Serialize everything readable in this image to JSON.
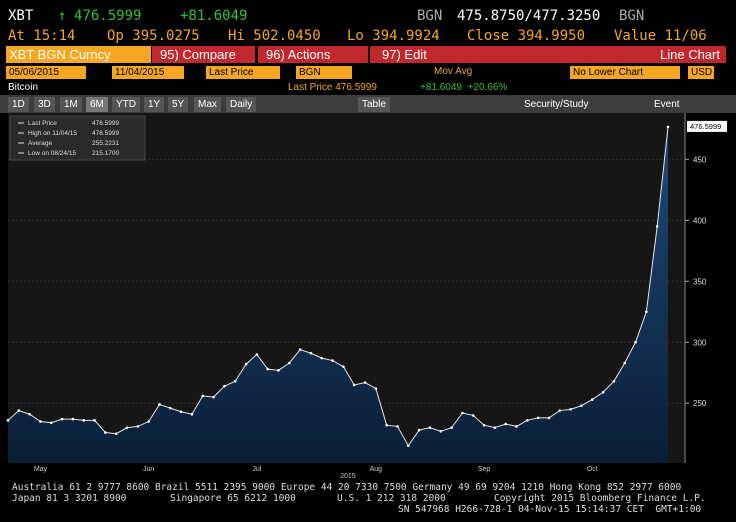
{
  "header": {
    "ticker": "XBT",
    "last": "476.5999",
    "change": "+81.6049",
    "source": "BGN",
    "bid_ask": "475.8750/477.3250",
    "source2": "BGN",
    "time": "At 15:14",
    "open": "Op 395.0275",
    "high": "Hi 502.0450",
    "low": "Lo 394.9924",
    "close": "Close 394.9950",
    "value_date": "Value 11/06"
  },
  "menu": {
    "security": "XBT BGN Curncy",
    "compare": "95) Compare",
    "actions": "96) Actions",
    "edit": "97) Edit",
    "chart_type": "Line Chart"
  },
  "settings": {
    "start": "05/06/2015",
    "end": "11/04/2015",
    "field": "Last Price",
    "source": "BGN",
    "study": "Mov Avg",
    "lower": "No Lower Chart",
    "currency": "USD"
  },
  "subheader": {
    "name": "Bitcoin",
    "last": "Last Price 476.5999",
    "change": "+81.6049  +20.66%"
  },
  "toolbar": {
    "periods": [
      "1D",
      "3D",
      "1M",
      "6M",
      "YTD",
      "1Y",
      "5Y",
      "Max"
    ],
    "frequency": "Daily",
    "table": "Table",
    "study": "Security/Study",
    "event": "Event"
  },
  "chart_data": {
    "type": "area",
    "categories": [
      null,
      null,
      null,
      "May",
      null,
      null,
      null,
      null,
      null,
      null,
      null,
      null,
      null,
      "Jun",
      null,
      null,
      null,
      null,
      null,
      null,
      null,
      null,
      null,
      "Jul",
      null,
      null,
      null,
      null,
      null,
      null,
      null,
      null,
      null,
      null,
      "Aug",
      null,
      null,
      null,
      null,
      null,
      null,
      null,
      null,
      null,
      "Sep",
      null,
      null,
      null,
      null,
      null,
      null,
      null,
      null,
      null,
      "Oct",
      null,
      null,
      null,
      null,
      null,
      null,
      null
    ],
    "x_year_label": "2015",
    "series": [
      {
        "name": "Last Price",
        "color": "#e6e6e6",
        "values": [
          236,
          244,
          241,
          235,
          234,
          237,
          237,
          236,
          236,
          226,
          225,
          230,
          231,
          235,
          249,
          246,
          243,
          241,
          256,
          255,
          264,
          268,
          282,
          290,
          278,
          277,
          283,
          294,
          291,
          287,
          285,
          280,
          265,
          267,
          262,
          232,
          231,
          215.17,
          228,
          230,
          227,
          230,
          242,
          240,
          232,
          230,
          233,
          231,
          236,
          238,
          238,
          244,
          245,
          248,
          253,
          259,
          268,
          283,
          300,
          325,
          395,
          476.5999
        ]
      }
    ],
    "last_price_label": "476.5999",
    "legend": [
      {
        "label": "Last Price",
        "value": "476.5999"
      },
      {
        "label": "High on 11/04/15",
        "value": "476.5999"
      },
      {
        "label": "Average",
        "value": "255.2231"
      },
      {
        "label": "Low on 08/24/15",
        "value": "215.1700"
      }
    ],
    "ylim": [
      201,
      488
    ],
    "yticks": [
      250,
      300,
      350,
      400,
      450
    ],
    "grid": true,
    "y_axis_side": "right"
  },
  "footer": {
    "line1": "Australia 61 2 9777 8600 Brazil 5511 2395 9000 Europe 44 20 7330 7500 Germany 49 69 9204 1210 Hong Kong 852 2977 6000",
    "line2": [
      "Japan 81 3 3201 8900",
      "Singapore 65 6212 1000",
      "U.S. 1 212 318 2000",
      "Copyright 2015 Bloomberg Finance L.P."
    ],
    "line3": "SN 547968 H266-728-1 04-Nov-15 15:14:37 CET  GMT+1:00"
  }
}
